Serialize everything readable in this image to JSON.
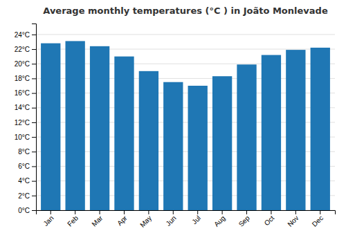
{
  "chart_data": {
    "type": "bar",
    "title": "Average monthly temperatures (°C ) in Joãto Monlevade",
    "categories": [
      "Jan",
      "Feb",
      "Mar",
      "Apr",
      "May",
      "Jun",
      "Jul",
      "Aug",
      "Sep",
      "Oct",
      "Nov",
      "Dec"
    ],
    "values": [
      22.8,
      23.1,
      22.4,
      21.0,
      19.0,
      17.5,
      17.0,
      18.3,
      19.9,
      21.2,
      21.9,
      22.2
    ],
    "ylim": [
      0,
      25.5
    ],
    "yticks": [
      {
        "value": 0,
        "label": "0°C"
      },
      {
        "value": 2,
        "label": "2°C"
      },
      {
        "value": 4,
        "label": "4°C"
      },
      {
        "value": 6,
        "label": "6°C"
      },
      {
        "value": 8,
        "label": "8°C"
      },
      {
        "value": 10,
        "label": "10°C"
      },
      {
        "value": 12,
        "label": "12°C"
      },
      {
        "value": 14,
        "label": "14°C"
      },
      {
        "value": 16,
        "label": "16°C"
      },
      {
        "value": 18,
        "label": "18°C"
      },
      {
        "value": 20,
        "label": "20°C"
      },
      {
        "value": 22,
        "label": "22°C"
      },
      {
        "value": 24,
        "label": "24°C"
      }
    ],
    "grid": true
  }
}
